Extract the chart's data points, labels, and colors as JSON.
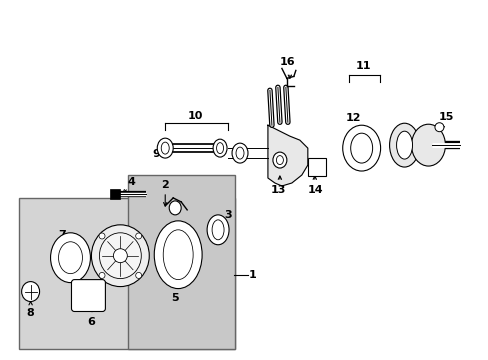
{
  "fig_bg": "#ffffff",
  "line_color": "#000000",
  "box_fill": "#d4d4d4",
  "inner_box_fill": "#c8c8c8",
  "part_fill": "#ffffff",
  "fig_w": 4.89,
  "fig_h": 3.6,
  "dpi": 100
}
